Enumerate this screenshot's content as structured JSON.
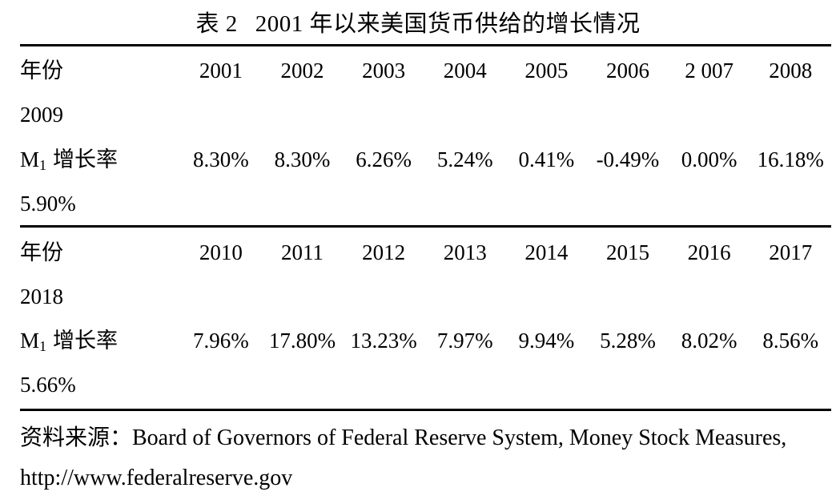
{
  "title": "表 2",
  "title_rest": "2001 年以来美国货币供给的增长情况",
  "table": {
    "block1": {
      "year_label": "年份",
      "years": [
        "2001",
        "2002",
        "2003",
        "2004",
        "2005",
        "2006",
        "2 007",
        "2008"
      ],
      "year_overflow": "2009",
      "m1_label_base": "M",
      "m1_label_sub": "1",
      "m1_label_rest": "增长率",
      "values": [
        "8.30%",
        "8.30%",
        "6.26%",
        "5.24%",
        "0.41%",
        "-0.49%",
        "0.00%",
        "16.18%"
      ],
      "value_overflow": "5.90%"
    },
    "block2": {
      "year_label": "年份",
      "years": [
        "2010",
        "2011",
        "2012",
        "2013",
        "2014",
        "2015",
        "2016",
        "2017"
      ],
      "year_overflow": "2018",
      "m1_label_base": "M",
      "m1_label_sub": "1",
      "m1_label_rest": "增长率",
      "values": [
        "7.96%",
        "17.80%",
        "13.23%",
        "7.97%",
        "9.94%",
        "5.28%",
        "8.02%",
        "8.56%"
      ],
      "value_overflow": "5.66%"
    }
  },
  "source": {
    "line1": "资料来源：Board of Governors of Federal Reserve System, Money Stock Measures,",
    "line2": "http://www.federalreserve.gov"
  },
  "colors": {
    "text": "#000000",
    "background": "#ffffff",
    "rule": "#000000"
  },
  "chart_data": {
    "type": "table",
    "title": "表 2  2001 年以来美国货币供给的增长情况",
    "series": [
      {
        "name": "M1 增长率",
        "x": [
          2001,
          2002,
          2003,
          2004,
          2005,
          2006,
          2007,
          2008,
          2009,
          2010,
          2011,
          2012,
          2013,
          2014,
          2015,
          2016,
          2017,
          2018
        ],
        "values_percent": [
          8.3,
          8.3,
          6.26,
          5.24,
          0.41,
          -0.49,
          0.0,
          16.18,
          5.9,
          7.96,
          17.8,
          13.23,
          7.97,
          9.94,
          5.28,
          8.02,
          8.56,
          5.66
        ]
      }
    ]
  }
}
